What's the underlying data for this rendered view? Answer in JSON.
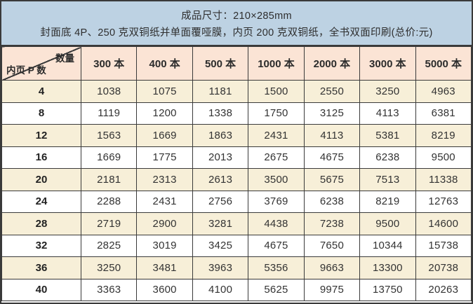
{
  "header": {
    "line1": "成品尺寸：210×285mm",
    "line2": "封面底 4P、250 克双铜纸并单面覆哑膜，内页 200 克双铜纸，全书双面印刷(总价:元)"
  },
  "table": {
    "corner": {
      "top_right": "数量",
      "bottom_left": "内页 P 数"
    },
    "columns": [
      "300 本",
      "400 本",
      "500 本",
      "1000 本",
      "2000 本",
      "3000 本",
      "5000 本"
    ],
    "rows": [
      {
        "pages": "4",
        "prices": [
          "1038",
          "1075",
          "1181",
          "1500",
          "2550",
          "3250",
          "4963"
        ]
      },
      {
        "pages": "8",
        "prices": [
          "1119",
          "1200",
          "1338",
          "1750",
          "3125",
          "4113",
          "6381"
        ]
      },
      {
        "pages": "12",
        "prices": [
          "1563",
          "1669",
          "1863",
          "2431",
          "4113",
          "5381",
          "8219"
        ]
      },
      {
        "pages": "16",
        "prices": [
          "1669",
          "1775",
          "2013",
          "2675",
          "4675",
          "6238",
          "9500"
        ]
      },
      {
        "pages": "20",
        "prices": [
          "2181",
          "2313",
          "2613",
          "3500",
          "5675",
          "7513",
          "11338"
        ]
      },
      {
        "pages": "24",
        "prices": [
          "2288",
          "2431",
          "2756",
          "3769",
          "6238",
          "8219",
          "12763"
        ]
      },
      {
        "pages": "28",
        "prices": [
          "2719",
          "2900",
          "3281",
          "4438",
          "7238",
          "9500",
          "14600"
        ]
      },
      {
        "pages": "32",
        "prices": [
          "2825",
          "3019",
          "3425",
          "4675",
          "7650",
          "10344",
          "15738"
        ]
      },
      {
        "pages": "36",
        "prices": [
          "3250",
          "3481",
          "3963",
          "5356",
          "9663",
          "13300",
          "20738"
        ]
      },
      {
        "pages": "40",
        "prices": [
          "3363",
          "3600",
          "4100",
          "5625",
          "9975",
          "13750",
          "20263"
        ]
      }
    ]
  },
  "colors": {
    "header_bg": "#bdd2e3",
    "column_header_bg": "#fbe4d5",
    "row_alt_bg": "#f7efd8",
    "row_bg": "#ffffff",
    "border": "#3a3a3a",
    "text": "#333333"
  }
}
